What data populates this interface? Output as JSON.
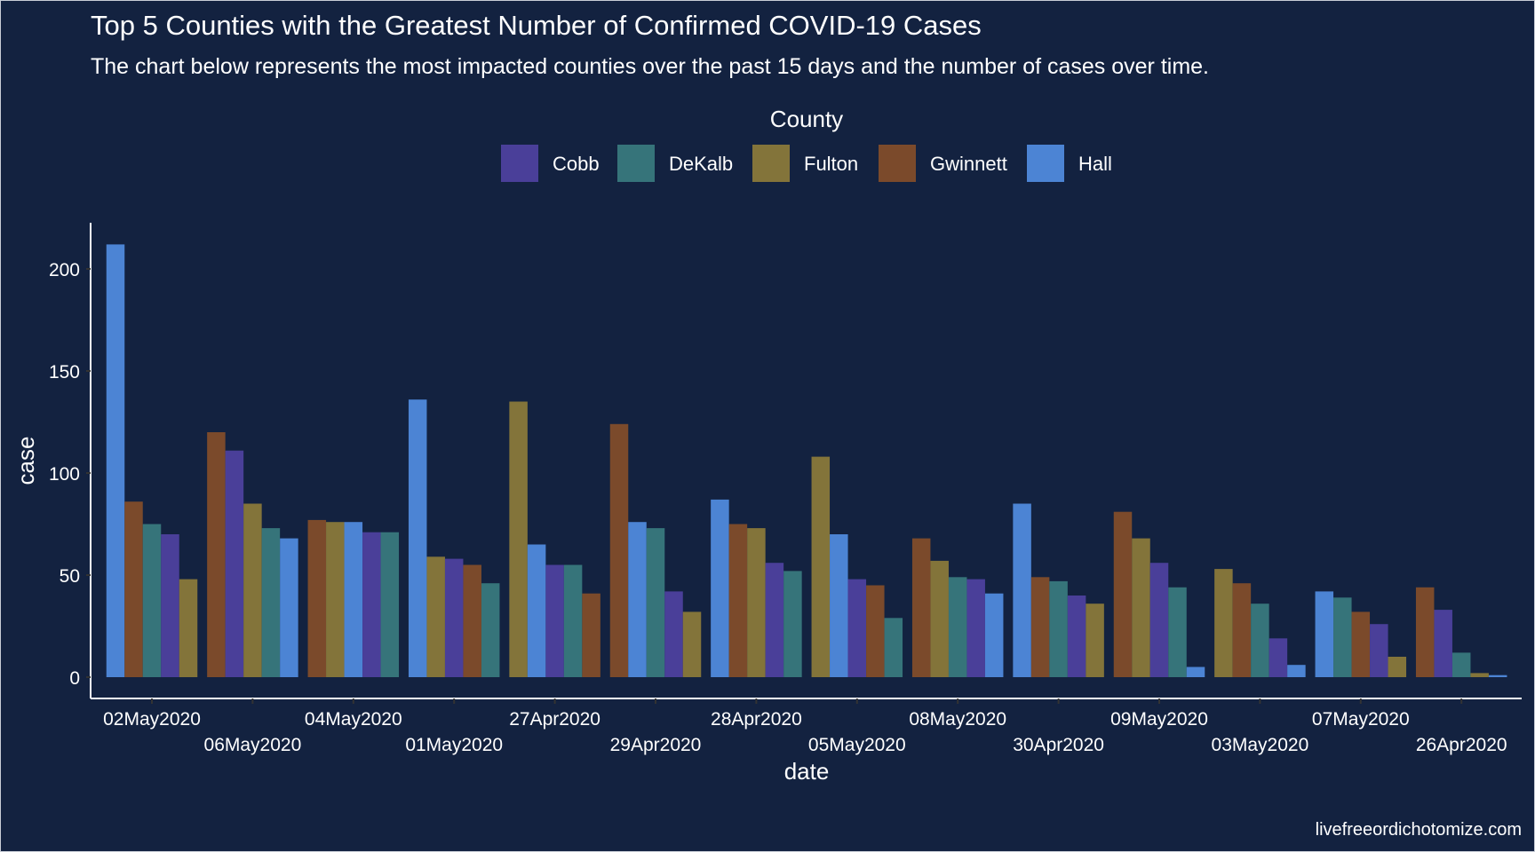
{
  "chart_data": {
    "type": "bar",
    "title": "Top 5 Counties with the Greatest Number of Confirmed COVID-19 Cases",
    "subtitle": "The chart below represents the most impacted counties over the past 15 days and the number of cases over time.",
    "xlabel": "date",
    "ylabel": "case",
    "ylim": [
      0,
      222
    ],
    "yticks": [
      0,
      50,
      100,
      150,
      200
    ],
    "grid": false,
    "legend": {
      "title": "County",
      "placement": "top",
      "entries": [
        "Cobb",
        "DeKalb",
        "Fulton",
        "Gwinnett",
        "Hall"
      ]
    },
    "colors": {
      "Cobb": "#4a3f99",
      "DeKalb": "#36747a",
      "Fulton": "#83743a",
      "Gwinnett": "#7b4a2b",
      "Hall": "#4c84d4"
    },
    "caption": "livefreeordichotomize.com",
    "groups": [
      {
        "date": "02May2020",
        "bars": [
          [
            "Hall",
            212
          ],
          [
            "Gwinnett",
            86
          ],
          [
            "DeKalb",
            75
          ],
          [
            "Cobb",
            70
          ],
          [
            "Fulton",
            48
          ]
        ]
      },
      {
        "date": "06May2020",
        "bars": [
          [
            "Gwinnett",
            120
          ],
          [
            "Cobb",
            111
          ],
          [
            "Fulton",
            85
          ],
          [
            "DeKalb",
            73
          ],
          [
            "Hall",
            68
          ]
        ]
      },
      {
        "date": "04May2020",
        "bars": [
          [
            "Gwinnett",
            77
          ],
          [
            "Fulton",
            76
          ],
          [
            "Hall",
            76
          ],
          [
            "Cobb",
            71
          ],
          [
            "DeKalb",
            71
          ]
        ]
      },
      {
        "date": "01May2020",
        "bars": [
          [
            "Hall",
            136
          ],
          [
            "Fulton",
            59
          ],
          [
            "Cobb",
            58
          ],
          [
            "Gwinnett",
            55
          ],
          [
            "DeKalb",
            46
          ]
        ]
      },
      {
        "date": "27Apr2020",
        "bars": [
          [
            "Fulton",
            135
          ],
          [
            "Hall",
            65
          ],
          [
            "Cobb",
            55
          ],
          [
            "DeKalb",
            55
          ],
          [
            "Gwinnett",
            41
          ]
        ]
      },
      {
        "date": "29Apr2020",
        "bars": [
          [
            "Gwinnett",
            124
          ],
          [
            "Hall",
            76
          ],
          [
            "DeKalb",
            73
          ],
          [
            "Cobb",
            42
          ],
          [
            "Fulton",
            32
          ]
        ]
      },
      {
        "date": "28Apr2020",
        "bars": [
          [
            "Hall",
            87
          ],
          [
            "Gwinnett",
            75
          ],
          [
            "Fulton",
            73
          ],
          [
            "Cobb",
            56
          ],
          [
            "DeKalb",
            52
          ]
        ]
      },
      {
        "date": "05May2020",
        "bars": [
          [
            "Fulton",
            108
          ],
          [
            "Hall",
            70
          ],
          [
            "Cobb",
            48
          ],
          [
            "Gwinnett",
            45
          ],
          [
            "DeKalb",
            29
          ]
        ]
      },
      {
        "date": "08May2020",
        "bars": [
          [
            "Gwinnett",
            68
          ],
          [
            "Fulton",
            57
          ],
          [
            "DeKalb",
            49
          ],
          [
            "Cobb",
            48
          ],
          [
            "Hall",
            41
          ]
        ]
      },
      {
        "date": "30Apr2020",
        "bars": [
          [
            "Hall",
            85
          ],
          [
            "Gwinnett",
            49
          ],
          [
            "DeKalb",
            47
          ],
          [
            "Cobb",
            40
          ],
          [
            "Fulton",
            36
          ]
        ]
      },
      {
        "date": "09May2020",
        "bars": [
          [
            "Gwinnett",
            81
          ],
          [
            "Fulton",
            68
          ],
          [
            "Cobb",
            56
          ],
          [
            "DeKalb",
            44
          ],
          [
            "Hall",
            5
          ]
        ]
      },
      {
        "date": "03May2020",
        "bars": [
          [
            "Fulton",
            53
          ],
          [
            "Gwinnett",
            46
          ],
          [
            "DeKalb",
            36
          ],
          [
            "Cobb",
            19
          ],
          [
            "Hall",
            6
          ]
        ]
      },
      {
        "date": "07May2020",
        "bars": [
          [
            "Hall",
            42
          ],
          [
            "DeKalb",
            39
          ],
          [
            "Gwinnett",
            32
          ],
          [
            "Cobb",
            26
          ],
          [
            "Fulton",
            10
          ]
        ]
      },
      {
        "date": "26Apr2020",
        "bars": [
          [
            "Gwinnett",
            44
          ],
          [
            "Cobb",
            33
          ],
          [
            "DeKalb",
            12
          ],
          [
            "Fulton",
            2
          ],
          [
            "Hall",
            1
          ]
        ]
      }
    ]
  }
}
